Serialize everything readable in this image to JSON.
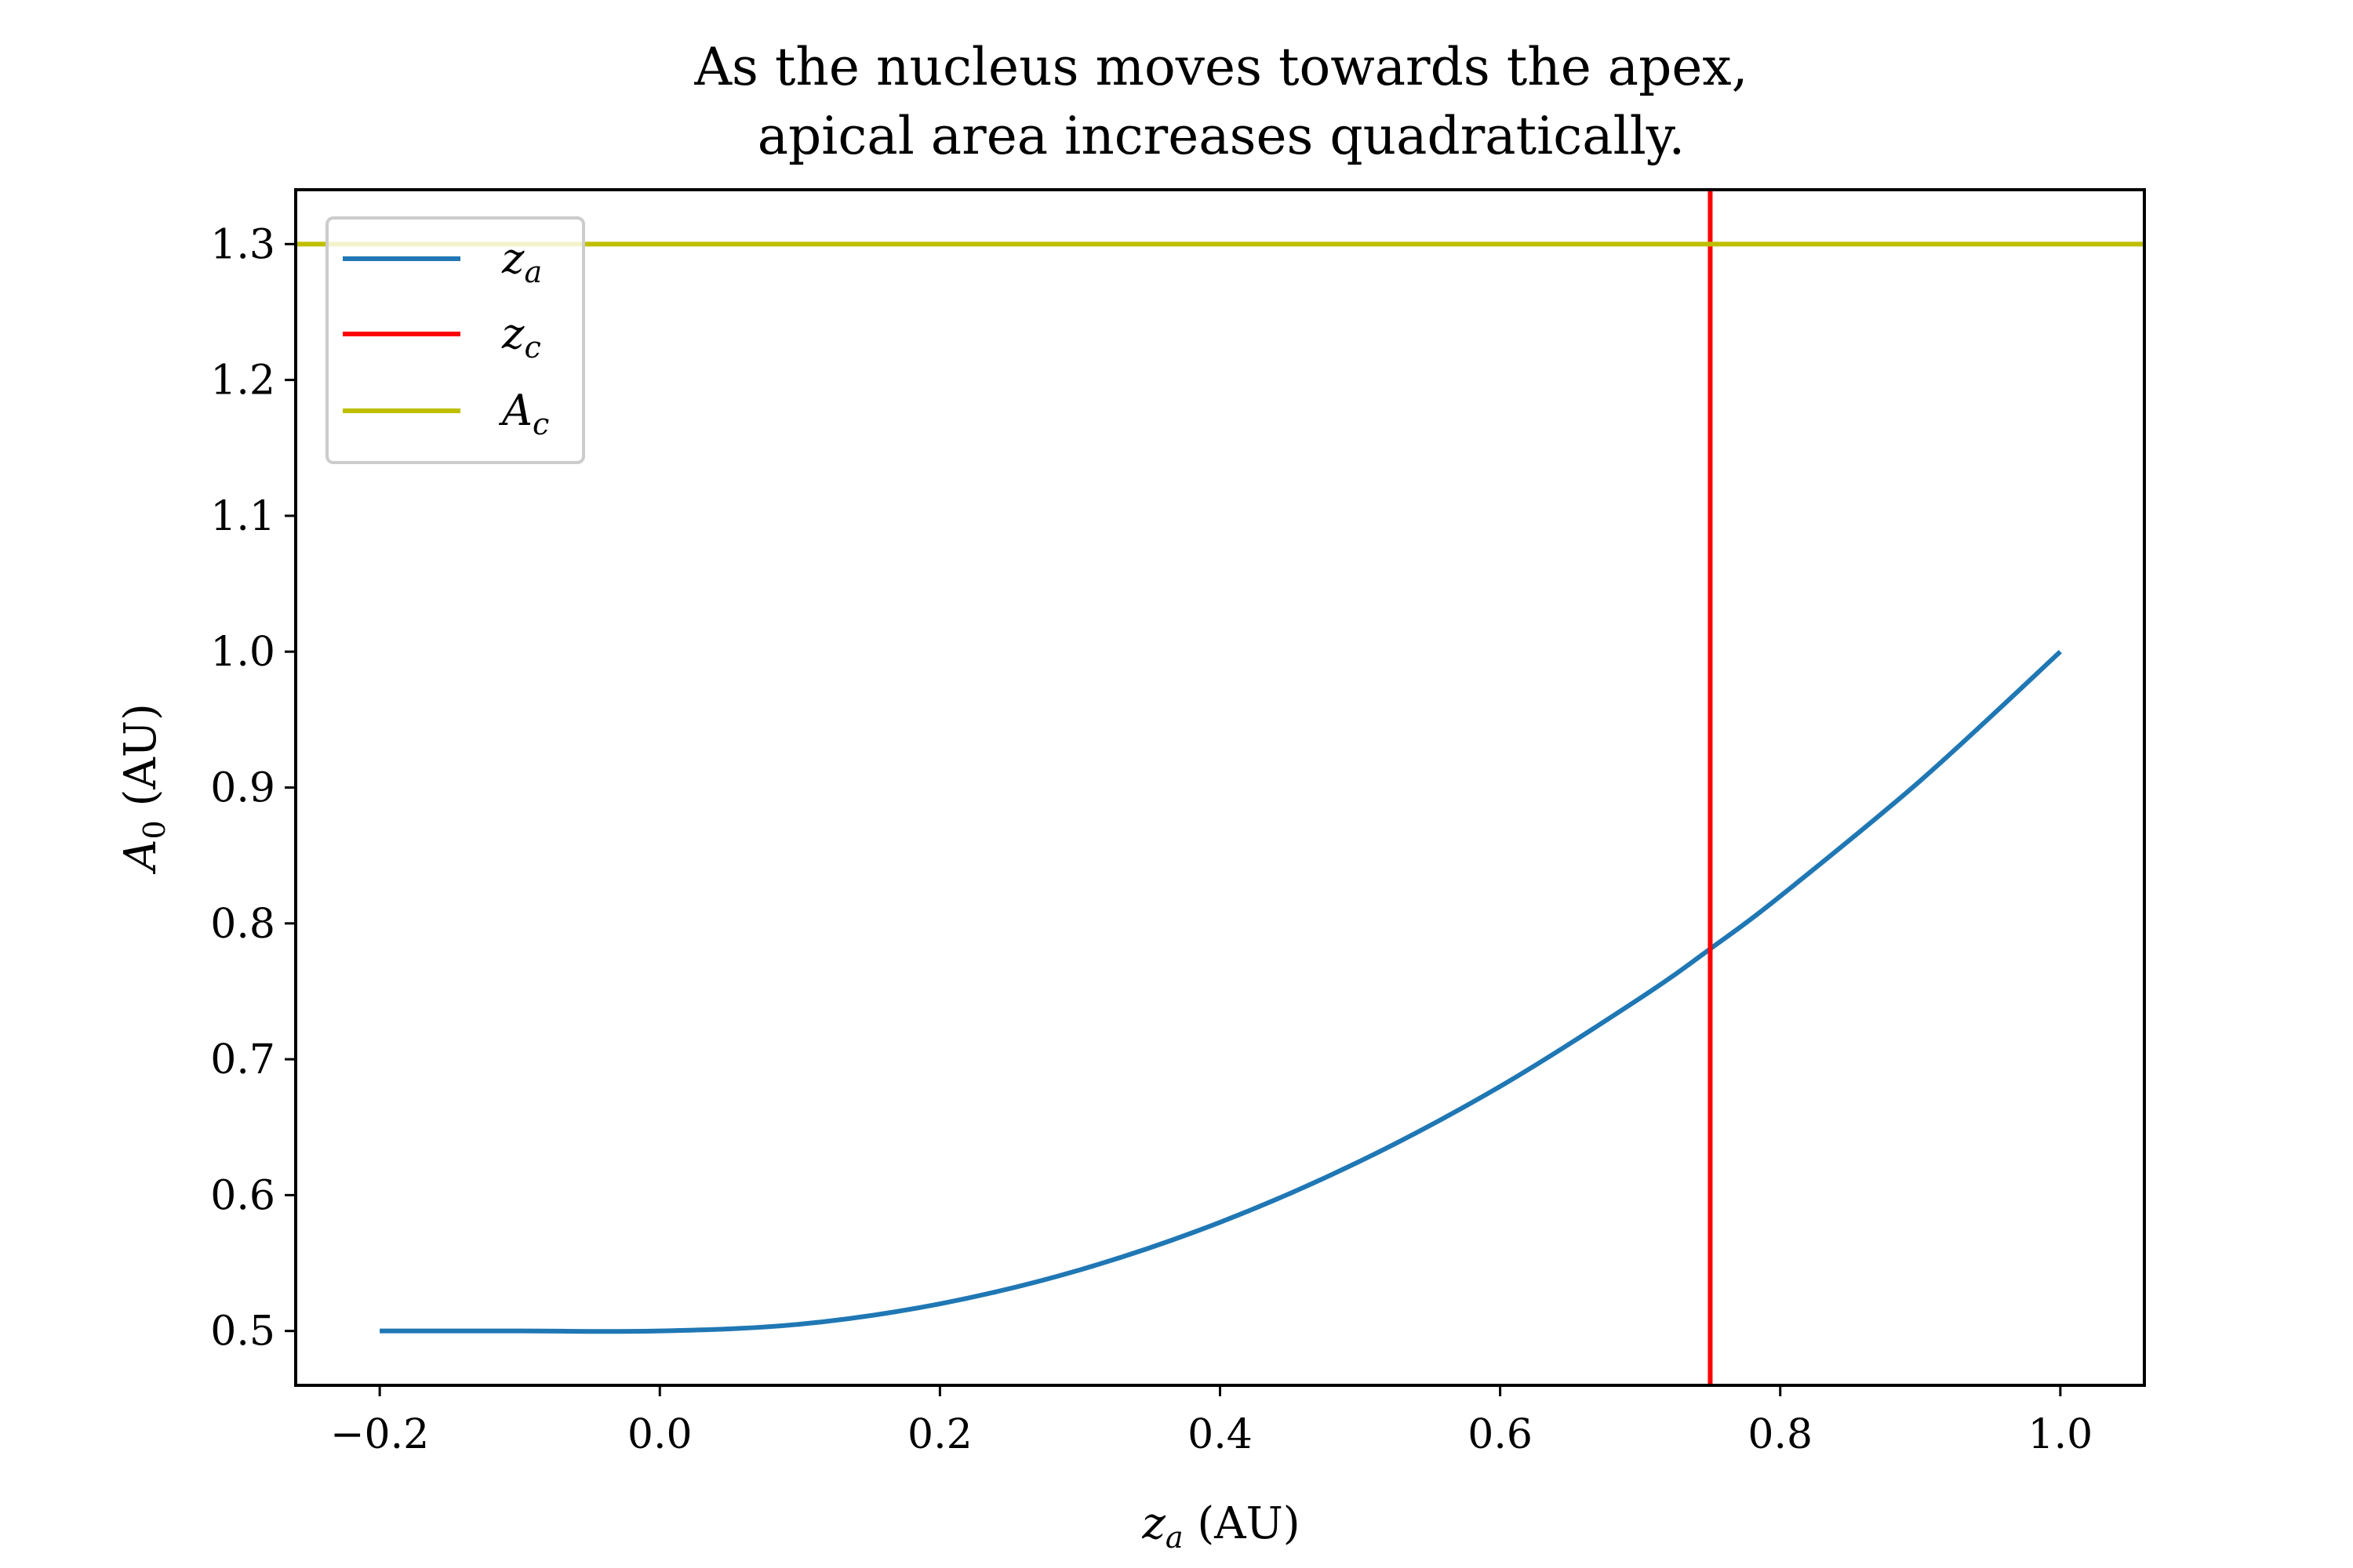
{
  "chart_data": {
    "type": "line",
    "title_lines": [
      "As the nucleus moves towards the apex,",
      "apical area increases quadratically."
    ],
    "xlabel": {
      "main": "z",
      "sub": "a",
      "unit": " (AU)"
    },
    "ylabel": {
      "main": "A",
      "sub": "0",
      "unit": " (AU)"
    },
    "xlim": [
      -0.26,
      1.06
    ],
    "ylim": [
      0.46,
      1.34
    ],
    "x_ticks": [
      {
        "value": -0.2,
        "label": "−0.2"
      },
      {
        "value": 0.0,
        "label": "0.0"
      },
      {
        "value": 0.2,
        "label": "0.2"
      },
      {
        "value": 0.4,
        "label": "0.4"
      },
      {
        "value": 0.6,
        "label": "0.6"
      },
      {
        "value": 0.8,
        "label": "0.8"
      },
      {
        "value": 1.0,
        "label": "1.0"
      }
    ],
    "y_ticks": [
      {
        "value": 0.5,
        "label": "0.5"
      },
      {
        "value": 0.6,
        "label": "0.6"
      },
      {
        "value": 0.7,
        "label": "0.7"
      },
      {
        "value": 0.8,
        "label": "0.8"
      },
      {
        "value": 0.9,
        "label": "0.9"
      },
      {
        "value": 1.0,
        "label": "1.0"
      },
      {
        "value": 1.1,
        "label": "1.1"
      },
      {
        "value": 1.2,
        "label": "1.2"
      },
      {
        "value": 1.3,
        "label": "1.3"
      }
    ],
    "grid": false,
    "legend_position": "top-left",
    "series": [
      {
        "name": "z_a",
        "legend": {
          "main": "z",
          "sub": "a"
        },
        "kind": "curve",
        "color": "#1f77b4",
        "x": [
          -0.2,
          -0.1,
          0.0,
          0.1,
          0.2,
          0.3,
          0.4,
          0.5,
          0.6,
          0.7,
          0.75,
          0.8,
          0.9,
          1.0
        ],
        "y": [
          0.5,
          0.5,
          0.5,
          0.505,
          0.52,
          0.545,
          0.58,
          0.625,
          0.68,
          0.745,
          0.78125,
          0.82,
          0.905,
          1.0
        ]
      },
      {
        "name": "z_c",
        "legend": {
          "main": "z",
          "sub": "c"
        },
        "kind": "vline",
        "color": "#ff0000",
        "x": 0.75
      },
      {
        "name": "A_c",
        "legend": {
          "main": "A",
          "sub": "c"
        },
        "kind": "hline",
        "color": "#bfbf00",
        "y": 1.3
      }
    ]
  }
}
